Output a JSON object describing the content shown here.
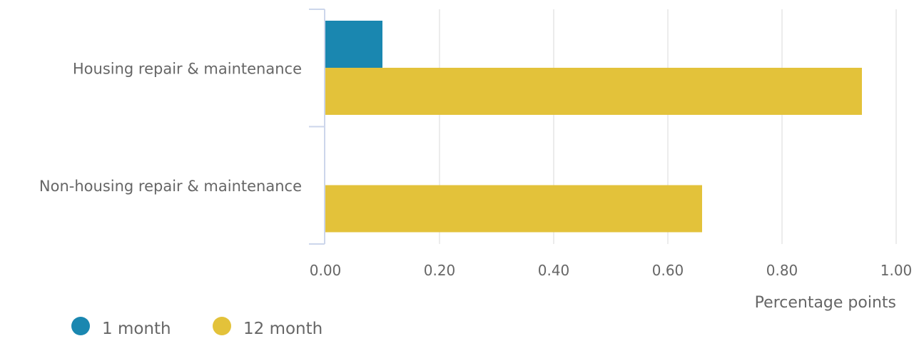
{
  "chart_data": {
    "type": "bar",
    "orientation": "horizontal",
    "categories": [
      "Housing repair & maintenance",
      "Non-housing repair & maintenance"
    ],
    "series": [
      {
        "name": "1 month",
        "color": "#1a87b0",
        "values": [
          0.1,
          0
        ]
      },
      {
        "name": "12 month",
        "color": "#e3c23a",
        "values": [
          0.94,
          0.66
        ]
      }
    ],
    "xlabel": "Percentage points",
    "xlim": [
      0,
      1
    ],
    "xticks": [
      "0.00",
      "0.20",
      "0.40",
      "0.60",
      "0.80",
      "1.00"
    ],
    "grid": true,
    "legend_position": "bottom-left"
  }
}
